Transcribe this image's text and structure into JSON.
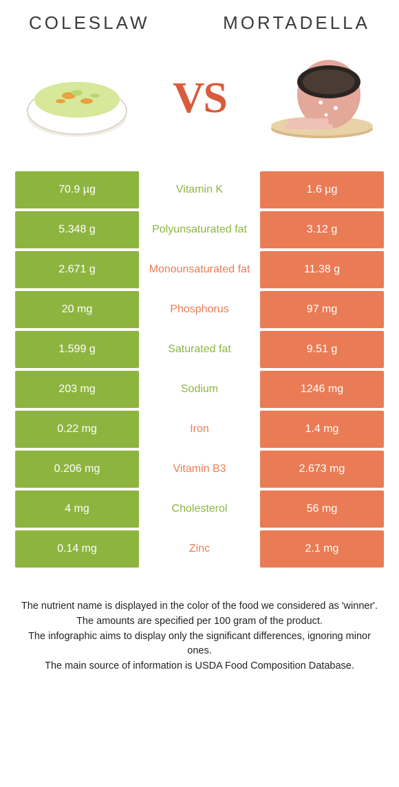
{
  "header": {
    "left_title": "Coleslaw",
    "right_title": "Mortadella",
    "vs": "VS"
  },
  "colors": {
    "left": "#8eb440",
    "right": "#e97c55",
    "background": "#ffffff",
    "text": "#3a3a3a"
  },
  "nutrients": [
    {
      "name": "Vitamin K",
      "left": "70.9 µg",
      "right": "1.6 µg",
      "winner": "left"
    },
    {
      "name": "Polyunsaturated fat",
      "left": "5.348 g",
      "right": "3.12 g",
      "winner": "left"
    },
    {
      "name": "Monounsaturated fat",
      "left": "2.671 g",
      "right": "11.38 g",
      "winner": "right"
    },
    {
      "name": "Phosphorus",
      "left": "20 mg",
      "right": "97 mg",
      "winner": "right"
    },
    {
      "name": "Saturated fat",
      "left": "1.599 g",
      "right": "9.51 g",
      "winner": "left"
    },
    {
      "name": "Sodium",
      "left": "203 mg",
      "right": "1246 mg",
      "winner": "left"
    },
    {
      "name": "Iron",
      "left": "0.22 mg",
      "right": "1.4 mg",
      "winner": "right"
    },
    {
      "name": "Vitamin B3",
      "left": "0.206 mg",
      "right": "2.673 mg",
      "winner": "right"
    },
    {
      "name": "Cholesterol",
      "left": "4 mg",
      "right": "56 mg",
      "winner": "left"
    },
    {
      "name": "Zinc",
      "left": "0.14 mg",
      "right": "2.1 mg",
      "winner": "right"
    }
  ],
  "footer": {
    "line1": "The nutrient name is displayed in the color of the food we considered as 'winner'.",
    "line2": "The amounts are specified per 100 gram of the product.",
    "line3": "The infographic aims to display only the significant differences, ignoring minor ones.",
    "line4": "The main source of information is USDA Food Composition Database."
  }
}
